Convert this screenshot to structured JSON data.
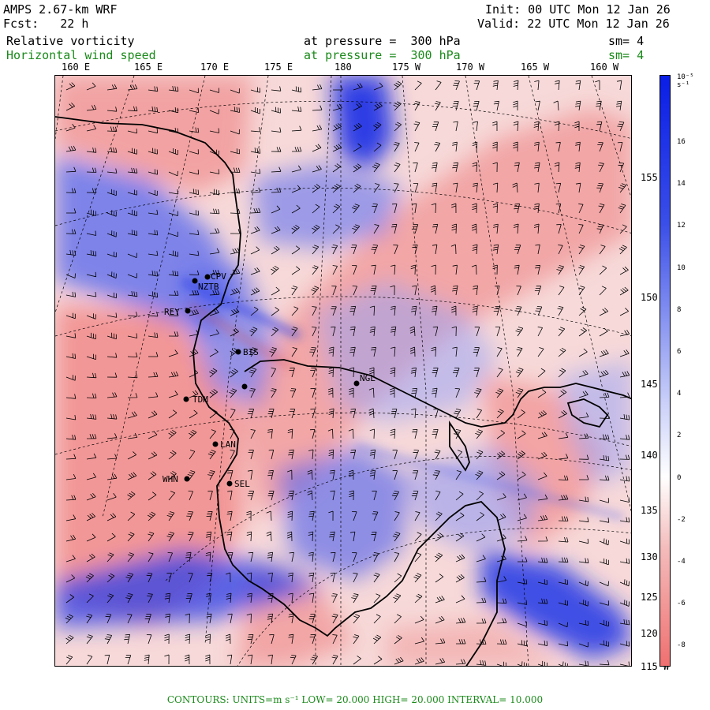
{
  "header": {
    "model": "AMPS 2.67-km WRF",
    "fcst_label": "Fcst:",
    "fcst_value": "22 h",
    "init": "Init: 00 UTC Mon 12 Jan 26",
    "valid": "Valid: 22 UTC Mon 12 Jan 26",
    "field1": {
      "name": "Relative vorticity",
      "pressure": "at pressure =  300 hPa",
      "sm": "sm= 4"
    },
    "field2": {
      "name": "Horizontal wind speed",
      "pressure": "at pressure =  300 hPa",
      "sm": "sm= 4"
    }
  },
  "lon_labels": [
    "160 E",
    "165 E",
    "170 E",
    "175 E",
    "180",
    "175 W",
    "170 W",
    "165 W",
    "160 W"
  ],
  "lat_labels": [
    "155",
    "150",
    "145",
    "140",
    "135",
    "130",
    "125",
    "120",
    "115"
  ],
  "lat_suffix": "W",
  "colorbar": {
    "units": "10⁻⁵ s⁻¹",
    "ticks": [
      "16",
      "14",
      "12",
      "10",
      "8",
      "6",
      "4",
      "2",
      "0",
      "-2",
      "-4",
      "-6",
      "-8"
    ],
    "colors": {
      "positive": "#0a1ee6",
      "negative": "#f07878",
      "zero": "#ffffff"
    }
  },
  "stations": [
    {
      "name": "CPV"
    },
    {
      "name": "NZTB"
    },
    {
      "name": "REY"
    },
    {
      "name": "BIS"
    },
    {
      "name": "NGL"
    },
    {
      "name": "TDM"
    },
    {
      "name": "LAN"
    },
    {
      "name": "WHN"
    },
    {
      "name": "SEL"
    }
  ],
  "footer": "CONTOURS:  UNITS=m s⁻¹  LOW=  20.000      HIGH=  20.000      INTERVAL=    10.000"
}
